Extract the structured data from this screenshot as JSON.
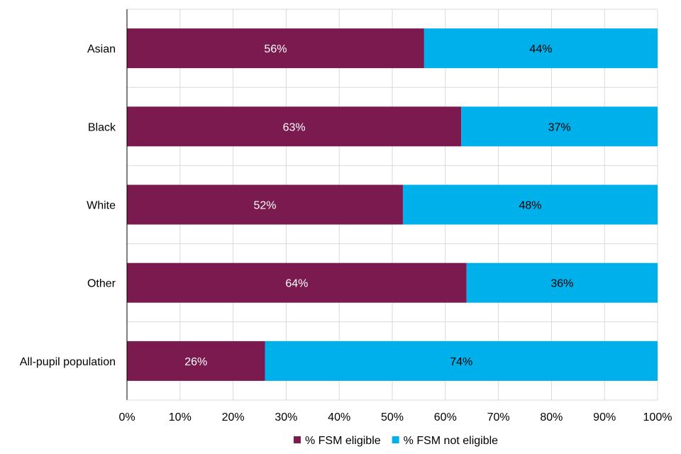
{
  "chart_data": {
    "type": "bar",
    "orientation": "horizontal",
    "stacked": true,
    "categories": [
      "Asian",
      "Black",
      "White",
      "Other",
      "All-pupil population"
    ],
    "series": [
      {
        "name": "% FSM eligible",
        "values": [
          56,
          63,
          52,
          64,
          26
        ],
        "color": "#7b1a4e",
        "label_color": "#ffffff"
      },
      {
        "name": "% FSM not eligible",
        "values": [
          44,
          37,
          48,
          36,
          74
        ],
        "color": "#00b0ea",
        "label_color": "#000000"
      }
    ],
    "x_ticks": [
      "0%",
      "10%",
      "20%",
      "30%",
      "40%",
      "50%",
      "60%",
      "70%",
      "80%",
      "90%",
      "100%"
    ],
    "xlim": [
      0,
      100
    ],
    "value_suffix": "%",
    "grid": true,
    "grid_color": "#d9d9d9",
    "legend_position": "bottom"
  }
}
